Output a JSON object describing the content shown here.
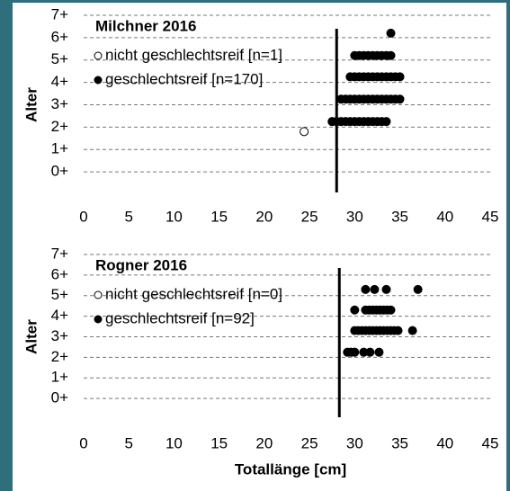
{
  "chart_data": [
    {
      "type": "scatter",
      "title": "Milchner 2016",
      "y_label": "Alter",
      "xlim": [
        0,
        45
      ],
      "xticks": [
        0,
        5,
        10,
        15,
        20,
        25,
        30,
        35,
        40,
        45
      ],
      "ylim": [
        -1,
        7
      ],
      "yticks": [
        {
          "value": 7,
          "label": "7+"
        },
        {
          "value": 6,
          "label": "6+"
        },
        {
          "value": 5,
          "label": "5+"
        },
        {
          "value": 4,
          "label": "4+"
        },
        {
          "value": 3,
          "label": "3+"
        },
        {
          "value": 2,
          "label": "2+"
        },
        {
          "value": 1,
          "label": "1+"
        },
        {
          "value": 0,
          "label": "0+"
        }
      ],
      "grid": true,
      "threshold": 28,
      "series": [
        {
          "name": "nicht geschlechtsreif [n=1]",
          "color": "#000000",
          "filled": false,
          "x": [
            24.4
          ],
          "y": [
            1.8
          ]
        },
        {
          "name": "geschlechtsreif [n=170]",
          "color": "#000000",
          "filled": true,
          "x": [
            34,
            30,
            30.5,
            31,
            31.5,
            32,
            32.5,
            33,
            33.5,
            34,
            29.5,
            30,
            30.5,
            31,
            31.5,
            32,
            32.5,
            33,
            33.5,
            34,
            34.5,
            35,
            28.5,
            29,
            29.5,
            30,
            30.5,
            31,
            31.5,
            32,
            32.5,
            33,
            33.5,
            34,
            34.5,
            35,
            27.5,
            28,
            28.5,
            29,
            29.5,
            30,
            30.5,
            31,
            31.5,
            32,
            32.5,
            33,
            33.5
          ],
          "y": [
            6.2,
            5.2,
            5.2,
            5.2,
            5.2,
            5.2,
            5.2,
            5.2,
            5.2,
            5.2,
            4.25,
            4.25,
            4.25,
            4.25,
            4.25,
            4.25,
            4.25,
            4.25,
            4.25,
            4.25,
            4.25,
            4.25,
            3.25,
            3.25,
            3.25,
            3.25,
            3.25,
            3.25,
            3.25,
            3.25,
            3.25,
            3.25,
            3.25,
            3.25,
            3.25,
            3.25,
            2.25,
            2.25,
            2.25,
            2.25,
            2.25,
            2.25,
            2.25,
            2.25,
            2.25,
            2.25,
            2.25,
            2.25,
            2.25
          ]
        }
      ]
    },
    {
      "type": "scatter",
      "title": "Rogner 2016",
      "y_label": "Alter",
      "x_label": "Totallänge [cm]",
      "xlim": [
        0,
        45
      ],
      "xticks": [
        0,
        5,
        10,
        15,
        20,
        25,
        30,
        35,
        40,
        45
      ],
      "ylim": [
        -1,
        7
      ],
      "yticks": [
        {
          "value": 7,
          "label": "7+"
        },
        {
          "value": 6,
          "label": "6+"
        },
        {
          "value": 5,
          "label": "5+"
        },
        {
          "value": 4,
          "label": "4+"
        },
        {
          "value": 3,
          "label": "3+"
        },
        {
          "value": 2,
          "label": "2+"
        },
        {
          "value": 1,
          "label": "1+"
        },
        {
          "value": 0,
          "label": "0+"
        }
      ],
      "grid": true,
      "threshold": 28.3,
      "series": [
        {
          "name": "nicht geschlechtsreif [n=0]",
          "color": "#000000",
          "filled": false,
          "x": [],
          "y": []
        },
        {
          "name": "geschlechtsreif [n=92]",
          "color": "#000000",
          "filled": true,
          "x": [
            31.2,
            32.2,
            33.5,
            37,
            30,
            31.2,
            31.6,
            32,
            32.4,
            32.8,
            33.2,
            33.6,
            34,
            30,
            30.4,
            30.8,
            31.2,
            31.6,
            32,
            32.4,
            32.8,
            33.2,
            33.6,
            34,
            34.4,
            34.8,
            36.4,
            29.2,
            29.6,
            30,
            31,
            31.7,
            32.7
          ],
          "y": [
            5.3,
            5.3,
            5.3,
            5.3,
            4.3,
            4.3,
            4.3,
            4.3,
            4.3,
            4.3,
            4.3,
            4.3,
            4.3,
            3.3,
            3.3,
            3.3,
            3.3,
            3.3,
            3.3,
            3.3,
            3.3,
            3.3,
            3.3,
            3.3,
            3.3,
            3.3,
            3.3,
            2.25,
            2.25,
            2.25,
            2.25,
            2.25,
            2.25
          ]
        }
      ]
    }
  ]
}
